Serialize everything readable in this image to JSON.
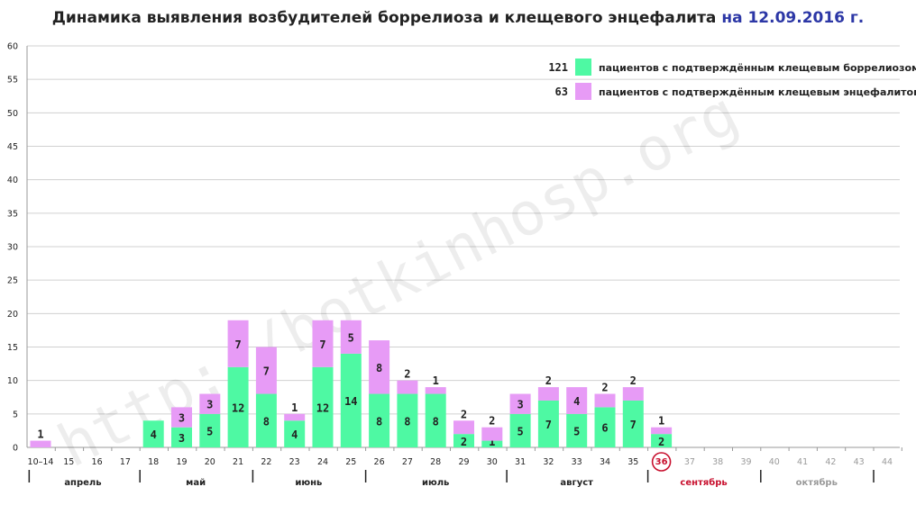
{
  "title": {
    "main": "Динамика выявления возбудителей боррелиоза и клещевого энцефалита",
    "date": "на 12.09.2016 г."
  },
  "watermark": "http://botkinhosp.org",
  "legend": [
    {
      "count": "121",
      "label": "пациентов с подтверждённым клещевым боррелиозом",
      "color": "#4ef9a3"
    },
    {
      "count": "63",
      "label": "пациентов с подтверждённым клещевым энцефалитом",
      "color": "#e79bf6"
    }
  ],
  "colors": {
    "borreliosis": "#4ef9a3",
    "encephalitis": "#e79bf6",
    "highlight": "#c8102e",
    "future": "#9a9a9a"
  },
  "chart_data": {
    "type": "bar",
    "stacked": true,
    "categories": [
      "10–14",
      "15",
      "16",
      "17",
      "18",
      "19",
      "20",
      "21",
      "22",
      "23",
      "24",
      "25",
      "26",
      "27",
      "28",
      "29",
      "30",
      "31",
      "32",
      "33",
      "34",
      "35",
      "36",
      "37",
      "38",
      "39",
      "40",
      "41",
      "42",
      "43",
      "44"
    ],
    "series": [
      {
        "name": "пациентов с подтверждённым клещевым боррелиозом",
        "values": [
          0,
          0,
          0,
          0,
          4,
          3,
          5,
          12,
          8,
          4,
          12,
          14,
          8,
          8,
          8,
          2,
          1,
          5,
          7,
          5,
          6,
          7,
          2,
          null,
          null,
          null,
          null,
          null,
          null,
          null,
          null
        ]
      },
      {
        "name": "пациентов с подтверждённым клещевым энцефалитом",
        "values": [
          1,
          0,
          0,
          0,
          0,
          3,
          3,
          7,
          7,
          1,
          7,
          5,
          8,
          2,
          1,
          2,
          2,
          3,
          2,
          4,
          2,
          2,
          1,
          null,
          null,
          null,
          null,
          null,
          null,
          null,
          null
        ]
      }
    ],
    "highlighted_category": "36",
    "inactive_categories": [
      "37",
      "38",
      "39",
      "40",
      "41",
      "42",
      "43",
      "44"
    ],
    "y_ticks": [
      0,
      5,
      10,
      15,
      20,
      25,
      30,
      35,
      40,
      45,
      50,
      55,
      60
    ],
    "ylim": [
      0,
      60
    ],
    "grid": true,
    "legend_position": "top-right",
    "months": [
      {
        "label": "апрель",
        "from": 0,
        "to": 3,
        "active": true
      },
      {
        "label": "май",
        "from": 4,
        "to": 7,
        "active": true
      },
      {
        "label": "июнь",
        "from": 8,
        "to": 11,
        "active": true
      },
      {
        "label": "июль",
        "from": 12,
        "to": 16,
        "active": true
      },
      {
        "label": "август",
        "from": 17,
        "to": 21,
        "active": true
      },
      {
        "label": "сентябрь",
        "from": 22,
        "to": 25,
        "active": false,
        "highlight": true
      },
      {
        "label": "октябрь",
        "from": 26,
        "to": 29,
        "active": false
      }
    ]
  }
}
